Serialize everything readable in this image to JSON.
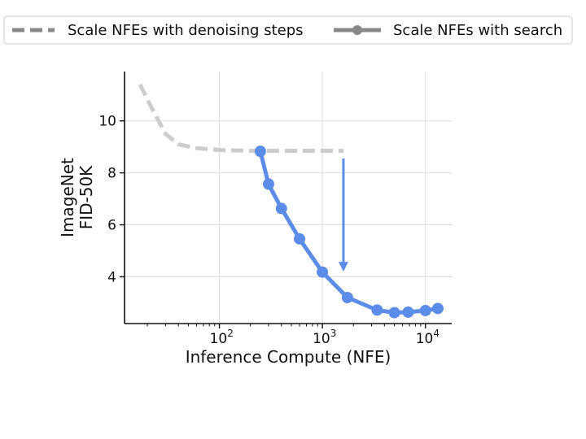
{
  "chart_data": {
    "type": "line",
    "xlabel": "Inference Compute (NFE)",
    "ylabel_lines": [
      "ImageNet",
      "FID-50K"
    ],
    "x_scale": "log",
    "xlim": [
      12,
      18000
    ],
    "ylim": [
      2.2,
      11.9
    ],
    "x_ticks": [
      {
        "value": 100,
        "base": "10",
        "exp": "2"
      },
      {
        "value": 1000,
        "base": "10",
        "exp": "3"
      },
      {
        "value": 10000,
        "base": "10",
        "exp": "4"
      }
    ],
    "y_ticks": [
      4,
      6,
      8,
      10
    ],
    "y_tick_labels": [
      "4",
      "6",
      "8",
      "10"
    ],
    "grid": true,
    "legend": {
      "placement": "top",
      "entries": [
        {
          "label": "Scale NFEs with denoising steps",
          "style": "dashed",
          "color": "#888888"
        },
        {
          "label": "Scale NFEs with search",
          "style": "solid-marker",
          "color": "#888888"
        }
      ]
    },
    "series": [
      {
        "key": "denoising",
        "color": "#cccccc",
        "style": "dashed",
        "x": [
          17,
          22,
          30,
          40,
          60,
          100,
          200,
          300,
          500,
          1000,
          1600
        ],
        "y": [
          11.4,
          10.5,
          9.5,
          9.1,
          8.95,
          8.88,
          8.85,
          8.85,
          8.85,
          8.85,
          8.85
        ]
      },
      {
        "key": "search",
        "color": "#5b8de8",
        "style": "solid-marker",
        "x": [
          250,
          300,
          400,
          600,
          1000,
          1750,
          3400,
          5000,
          6800,
          10000,
          13200
        ],
        "y": [
          8.83,
          7.57,
          6.63,
          5.46,
          4.18,
          3.2,
          2.72,
          2.62,
          2.64,
          2.7,
          2.78
        ]
      }
    ],
    "annotations": [
      {
        "type": "arrow",
        "color": "#5b8de8",
        "x": 1600,
        "y_from": 8.55,
        "y_to": 4.2
      }
    ]
  }
}
